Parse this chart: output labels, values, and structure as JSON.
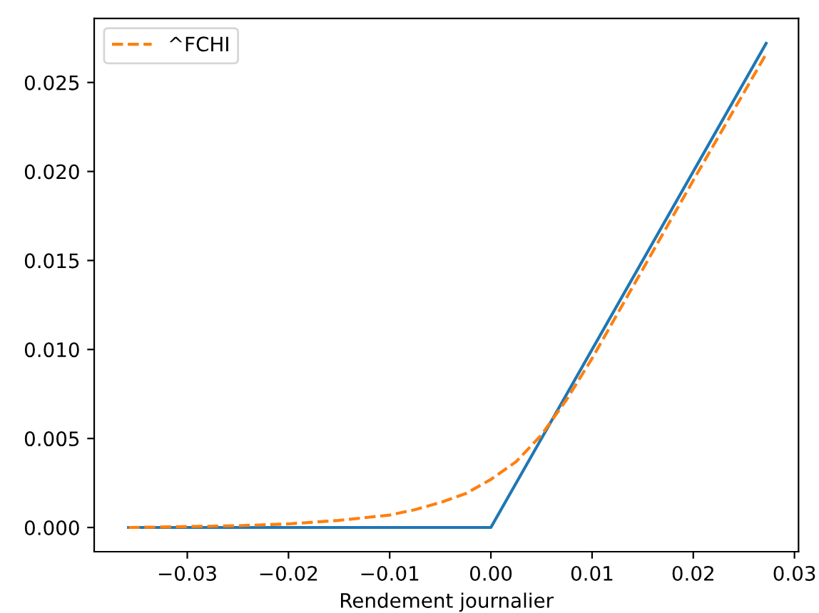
{
  "chart_data": {
    "type": "line",
    "xlabel": "Rendement journalier",
    "xlim": [
      -0.0392,
      0.0304
    ],
    "ylim": [
      -0.00136,
      0.0286
    ],
    "xticks": [
      {
        "value": -0.03,
        "label": "−0.03"
      },
      {
        "value": -0.02,
        "label": "−0.02"
      },
      {
        "value": -0.01,
        "label": "−0.01"
      },
      {
        "value": 0.0,
        "label": "0.00"
      },
      {
        "value": 0.01,
        "label": "0.01"
      },
      {
        "value": 0.02,
        "label": "0.02"
      },
      {
        "value": 0.03,
        "label": "0.03"
      }
    ],
    "yticks": [
      {
        "value": 0.0,
        "label": "0.000"
      },
      {
        "value": 0.005,
        "label": "0.005"
      },
      {
        "value": 0.01,
        "label": "0.010"
      },
      {
        "value": 0.015,
        "label": "0.015"
      },
      {
        "value": 0.02,
        "label": "0.020"
      },
      {
        "value": 0.025,
        "label": "0.025"
      }
    ],
    "legend": "top left",
    "grid": false,
    "series": [
      {
        "color": "#1f77b4",
        "line_style": "solid",
        "x": [
          -0.0358,
          0.0,
          0.0272
        ],
        "values": [
          0.0,
          0.0,
          0.0272
        ]
      },
      {
        "name": "^FCHI",
        "color": "#ff7f0e",
        "line_style": "dashed",
        "x": [
          -0.0358,
          -0.03,
          -0.025,
          -0.02,
          -0.015,
          -0.01,
          -0.0075,
          -0.005,
          -0.0025,
          0.0,
          0.0025,
          0.005,
          0.0075,
          0.01,
          0.015,
          0.02,
          0.0272
        ],
        "values": [
          0.0,
          5e-05,
          0.0001,
          0.0002,
          0.0004,
          0.0007,
          0.001,
          0.0014,
          0.0019,
          0.0027,
          0.0037,
          0.0052,
          0.0072,
          0.0095,
          0.0145,
          0.0195,
          0.0266
        ]
      }
    ]
  }
}
